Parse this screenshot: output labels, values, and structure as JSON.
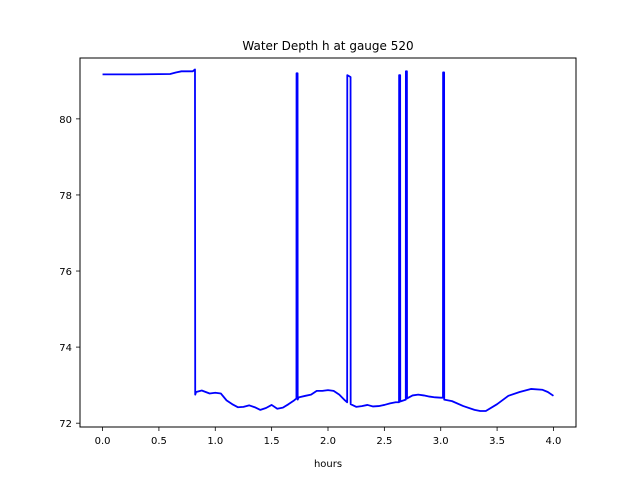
{
  "chart_data": {
    "type": "line",
    "title": "Water Depth h at gauge 520",
    "xlabel": "hours",
    "ylabel": "",
    "xlim": [
      -0.2,
      4.2
    ],
    "ylim": [
      71.9,
      81.6
    ],
    "xticks": [
      0.0,
      0.5,
      1.0,
      1.5,
      2.0,
      2.5,
      3.0,
      3.5,
      4.0
    ],
    "xtick_labels": [
      "0.0",
      "0.5",
      "1.0",
      "1.5",
      "2.0",
      "2.5",
      "3.0",
      "3.5",
      "4.0"
    ],
    "yticks": [
      72,
      74,
      76,
      78,
      80
    ],
    "ytick_labels": [
      "72",
      "74",
      "76",
      "78",
      "80"
    ],
    "grid": false,
    "series": [
      {
        "color": "#0000ff",
        "x": [
          0.0,
          0.3,
          0.6,
          0.65,
          0.7,
          0.8,
          0.82,
          0.822,
          0.83,
          0.88,
          0.95,
          1.0,
          1.05,
          1.1,
          1.15,
          1.2,
          1.25,
          1.3,
          1.35,
          1.4,
          1.45,
          1.5,
          1.55,
          1.6,
          1.65,
          1.7,
          1.72,
          1.721,
          1.73,
          1.731,
          1.74,
          1.8,
          1.85,
          1.9,
          1.95,
          2.0,
          2.05,
          2.1,
          2.15,
          2.17,
          2.171,
          2.2,
          2.201,
          2.25,
          2.3,
          2.35,
          2.4,
          2.45,
          2.5,
          2.55,
          2.6,
          2.63,
          2.631,
          2.64,
          2.641,
          2.69,
          2.691,
          2.7,
          2.701,
          2.75,
          2.8,
          2.85,
          2.9,
          2.95,
          3.0,
          3.02,
          3.021,
          3.03,
          3.031,
          3.1,
          3.2,
          3.3,
          3.35,
          3.4,
          3.5,
          3.6,
          3.7,
          3.8,
          3.9,
          3.95,
          4.0
        ],
        "y": [
          81.17,
          81.17,
          81.18,
          81.22,
          81.25,
          81.25,
          81.3,
          72.75,
          72.82,
          72.86,
          72.78,
          72.8,
          72.78,
          72.6,
          72.5,
          72.42,
          72.43,
          72.47,
          72.42,
          72.35,
          72.4,
          72.48,
          72.38,
          72.41,
          72.5,
          72.6,
          72.65,
          81.2,
          81.2,
          72.62,
          72.68,
          72.72,
          72.75,
          72.85,
          72.85,
          72.87,
          72.85,
          72.75,
          72.6,
          72.55,
          81.15,
          81.1,
          72.5,
          72.43,
          72.45,
          72.48,
          72.44,
          72.45,
          72.48,
          72.52,
          72.55,
          72.55,
          81.15,
          81.15,
          72.57,
          72.62,
          81.25,
          81.25,
          72.65,
          72.73,
          72.75,
          72.73,
          72.7,
          72.68,
          72.67,
          72.67,
          81.22,
          81.22,
          72.62,
          72.58,
          72.45,
          72.35,
          72.32,
          72.32,
          72.5,
          72.72,
          72.82,
          72.9,
          72.88,
          72.82,
          72.72
        ]
      }
    ]
  }
}
